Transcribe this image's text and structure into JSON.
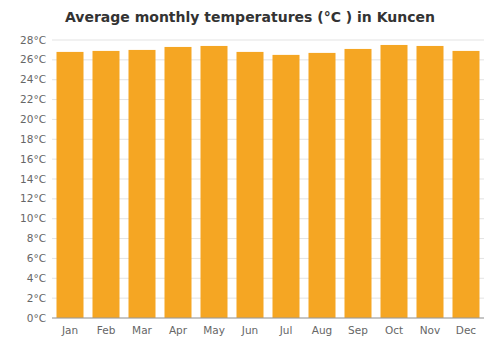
{
  "chart_data": {
    "type": "bar",
    "title": "Average monthly temperatures (°C ) in Kuncen",
    "categories": [
      "Jan",
      "Feb",
      "Mar",
      "Apr",
      "May",
      "Jun",
      "Jul",
      "Aug",
      "Sep",
      "Oct",
      "Nov",
      "Dec"
    ],
    "values": [
      26.8,
      26.9,
      27.0,
      27.3,
      27.4,
      26.8,
      26.5,
      26.7,
      27.1,
      27.5,
      27.4,
      26.9
    ],
    "color": "#F5A623",
    "ylim": [
      0,
      28
    ],
    "yticks": [
      {
        "value": 0,
        "label": "0°C"
      },
      {
        "value": 2,
        "label": "2°C"
      },
      {
        "value": 4,
        "label": "4°C"
      },
      {
        "value": 6,
        "label": "6°C"
      },
      {
        "value": 8,
        "label": "8°C"
      },
      {
        "value": 10,
        "label": "10°C"
      },
      {
        "value": 12,
        "label": "12°C"
      },
      {
        "value": 14,
        "label": "14°C"
      },
      {
        "value": 16,
        "label": "16°C"
      },
      {
        "value": 18,
        "label": "18°C"
      },
      {
        "value": 20,
        "label": "20°C"
      },
      {
        "value": 22,
        "label": "22°C"
      },
      {
        "value": 24,
        "label": "24°C"
      },
      {
        "value": 26,
        "label": "26°C"
      },
      {
        "value": 28,
        "label": "28°C"
      }
    ],
    "grid": true
  }
}
